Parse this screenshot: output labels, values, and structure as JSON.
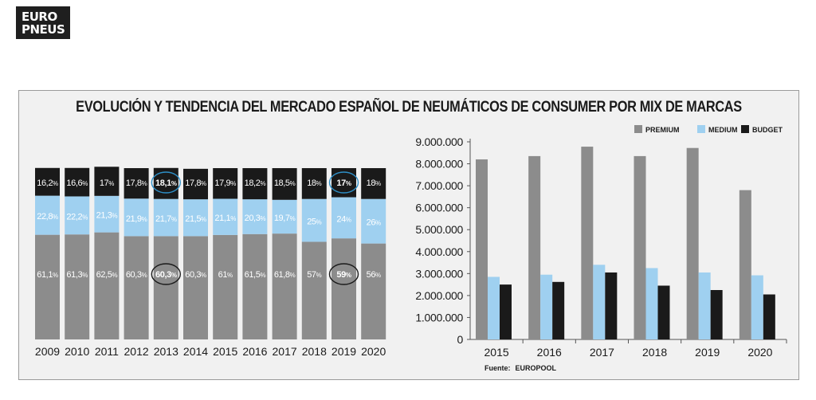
{
  "brand": {
    "line1": "EURO",
    "line2": "PNEUS"
  },
  "title": "EVOLUCIÓN Y TENDENCIA DEL MERCADO ESPAÑOL DE NEUMÁTICOS DE CONSUMER POR MIX DE MARCAS",
  "source": {
    "label": "Fuente:",
    "value": "EUROPOOL"
  },
  "colors": {
    "premium": "#8c8c8c",
    "medium": "#9fd0f0",
    "budget": "#1a1a1a",
    "highlight": "#2e8fc7",
    "panel": "#f1f1f1"
  },
  "chart_data": [
    {
      "type": "bar",
      "stacked": true,
      "categories": [
        "2009",
        "2010",
        "2011",
        "2012",
        "2013",
        "2014",
        "2015",
        "2016",
        "2017",
        "2018",
        "2019",
        "2020"
      ],
      "series": [
        {
          "name": "PREMIUM",
          "values": [
            61.1,
            61.3,
            62.5,
            60.3,
            60.3,
            60.3,
            61,
            61.5,
            61.8,
            57,
            59,
            56
          ],
          "labels": [
            "61,1",
            "61,3",
            "62,5",
            "60,3",
            "60,3",
            "60,3",
            "61",
            "61,5",
            "61,8",
            "57",
            "59",
            "56"
          ]
        },
        {
          "name": "MEDIUM",
          "values": [
            22.8,
            22.2,
            21.3,
            21.9,
            21.7,
            21.5,
            21.1,
            20.3,
            19.7,
            25,
            24,
            26
          ],
          "labels": [
            "22,8",
            "22,2",
            "21,3",
            "21,9",
            "21,7",
            "21,5",
            "21,1",
            "20,3",
            "19,7",
            "25",
            "24",
            "26"
          ]
        },
        {
          "name": "BUDGET",
          "values": [
            16.2,
            16.6,
            17,
            17.8,
            18.1,
            17.8,
            17.9,
            18.2,
            18.5,
            18,
            17,
            18
          ],
          "labels": [
            "16,2",
            "16,6",
            "17",
            "17,8",
            "18,1",
            "17,8",
            "17,9",
            "18,2",
            "18,5",
            "18",
            "17",
            "18"
          ]
        }
      ],
      "percent_sign": "%",
      "highlighted": [
        {
          "category": "2013",
          "series": "PREMIUM",
          "ring": "dark"
        },
        {
          "category": "2013",
          "series": "BUDGET",
          "ring": "blue"
        },
        {
          "category": "2019",
          "series": "PREMIUM",
          "ring": "dark"
        },
        {
          "category": "2019",
          "series": "BUDGET",
          "ring": "blue"
        }
      ],
      "ylim": [
        0,
        100
      ]
    },
    {
      "type": "bar",
      "categories": [
        "2015",
        "2016",
        "2017",
        "2018",
        "2019",
        "2020"
      ],
      "series": [
        {
          "name": "PREMIUM",
          "values": [
            8200000,
            8350000,
            8780000,
            8350000,
            8720000,
            6800000
          ]
        },
        {
          "name": "MEDIUM",
          "values": [
            2850000,
            2950000,
            3400000,
            3250000,
            3050000,
            2920000
          ]
        },
        {
          "name": "BUDGET",
          "values": [
            2500000,
            2620000,
            3050000,
            2450000,
            2250000,
            2050000
          ]
        }
      ],
      "yticks": [
        0,
        1000000,
        2000000,
        3000000,
        4000000,
        5000000,
        6000000,
        7000000,
        8000000,
        9000000
      ],
      "ytick_labels": [
        "0",
        "1.000.000",
        "2.000.000",
        "3.000.000",
        "4.000.000",
        "5.000.000",
        "6.000.000",
        "7.000.000",
        "8.000.000",
        "9.000.000"
      ],
      "ylim": [
        0,
        9000000
      ],
      "legend": [
        "PREMIUM",
        "MEDIUM",
        "BUDGET"
      ],
      "legend_position": "top-right",
      "grid": false
    }
  ]
}
